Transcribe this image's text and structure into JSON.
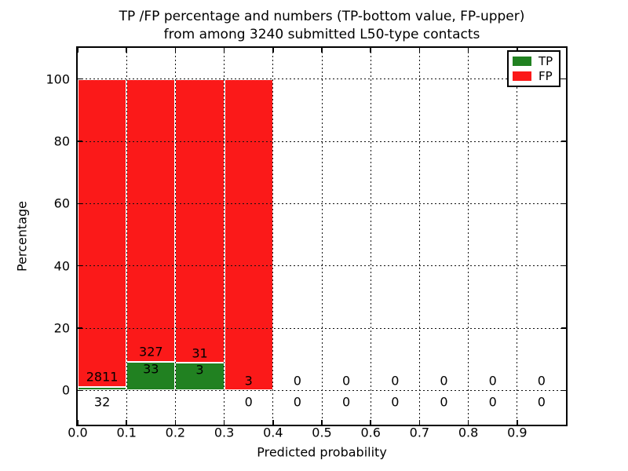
{
  "chart_data": {
    "type": "bar",
    "stacked": true,
    "title_line1": "TP /FP percentage and numbers (TP-bottom value, FP-upper)",
    "title_line2": "from among 3240 submitted L50-type contacts",
    "xlabel": "Predicted probability",
    "ylabel": "Percentage",
    "total_submitted_contacts": 3240,
    "xlim": [
      0.0,
      1.0
    ],
    "ylim": [
      -11,
      110
    ],
    "xticks": [
      0.0,
      0.1,
      0.2,
      0.3,
      0.4,
      0.5,
      0.6,
      0.7,
      0.8,
      0.9
    ],
    "xtick_labels": [
      "0.0",
      "0.1",
      "0.2",
      "0.3",
      "0.4",
      "0.5",
      "0.6",
      "0.7",
      "0.8",
      "0.9"
    ],
    "yticks": [
      0,
      20,
      40,
      60,
      80,
      100
    ],
    "ytick_labels": [
      "0",
      "20",
      "40",
      "60",
      "80",
      "100"
    ],
    "grid": "dotted, drawn above bars",
    "legend": {
      "position": "upper right",
      "entries": [
        {
          "label": "TP",
          "color": "#218121"
        },
        {
          "label": "FP",
          "color": "#fb1919"
        }
      ]
    },
    "colors": {
      "tp_green": "#218121",
      "fp_red": "#fb1919",
      "bar_edge": "#ffffff",
      "axes": "#000000",
      "background": "#ffffff"
    },
    "bins": [
      {
        "range": [
          0.0,
          0.1
        ],
        "tp": 32,
        "fp": 2811,
        "tp_pct": 1.13,
        "fp_pct": 98.87
      },
      {
        "range": [
          0.1,
          0.2
        ],
        "tp": 33,
        "fp": 327,
        "tp_pct": 9.17,
        "fp_pct": 90.83
      },
      {
        "range": [
          0.2,
          0.3
        ],
        "tp": 3,
        "fp": 31,
        "tp_pct": 8.82,
        "fp_pct": 91.18
      },
      {
        "range": [
          0.3,
          0.4
        ],
        "tp": 0,
        "fp": 3,
        "tp_pct": 0,
        "fp_pct": 100
      },
      {
        "range": [
          0.4,
          0.5
        ],
        "tp": 0,
        "fp": 0,
        "tp_pct": 0,
        "fp_pct": 0
      },
      {
        "range": [
          0.5,
          0.6
        ],
        "tp": 0,
        "fp": 0,
        "tp_pct": 0,
        "fp_pct": 0
      },
      {
        "range": [
          0.6,
          0.7
        ],
        "tp": 0,
        "fp": 0,
        "tp_pct": 0,
        "fp_pct": 0
      },
      {
        "range": [
          0.7,
          0.8
        ],
        "tp": 0,
        "fp": 0,
        "tp_pct": 0,
        "fp_pct": 0
      },
      {
        "range": [
          0.8,
          0.9
        ],
        "tp": 0,
        "fp": 0,
        "tp_pct": 0,
        "fp_pct": 0
      },
      {
        "range": [
          0.9,
          1.0
        ],
        "tp": 0,
        "fp": 0,
        "tp_pct": 0,
        "fp_pct": 0
      }
    ]
  }
}
